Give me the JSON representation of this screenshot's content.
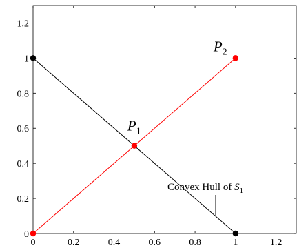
{
  "chart_data": {
    "type": "line",
    "title": "",
    "xlabel": "",
    "ylabel": "",
    "xlim": [
      0,
      1.3
    ],
    "ylim": [
      0,
      1.3
    ],
    "x_ticks": [
      "0",
      "0.2",
      "0.4",
      "0.6",
      "0.8",
      "1",
      "1.2"
    ],
    "y_ticks": [
      "0",
      "0.2",
      "0.4",
      "0.6",
      "0.8",
      "1",
      "1.2"
    ],
    "grid": false,
    "series": [
      {
        "color": "#000000",
        "points": [
          [
            0,
            1
          ],
          [
            1,
            0
          ]
        ]
      },
      {
        "color": "#ff0000",
        "points": [
          [
            0,
            0
          ],
          [
            0.5,
            0.5
          ],
          [
            1,
            1
          ]
        ]
      }
    ],
    "annotations": {
      "p1": {
        "name": "P",
        "sub": "1",
        "x": 0.5,
        "y": 0.5
      },
      "p2": {
        "name": "P",
        "sub": "2",
        "x": 1,
        "y": 1
      },
      "hull": {
        "text": "Convex Hull of ",
        "var": "S",
        "sub": "1",
        "pointer": [
          0.9,
          0.1
        ]
      }
    }
  }
}
